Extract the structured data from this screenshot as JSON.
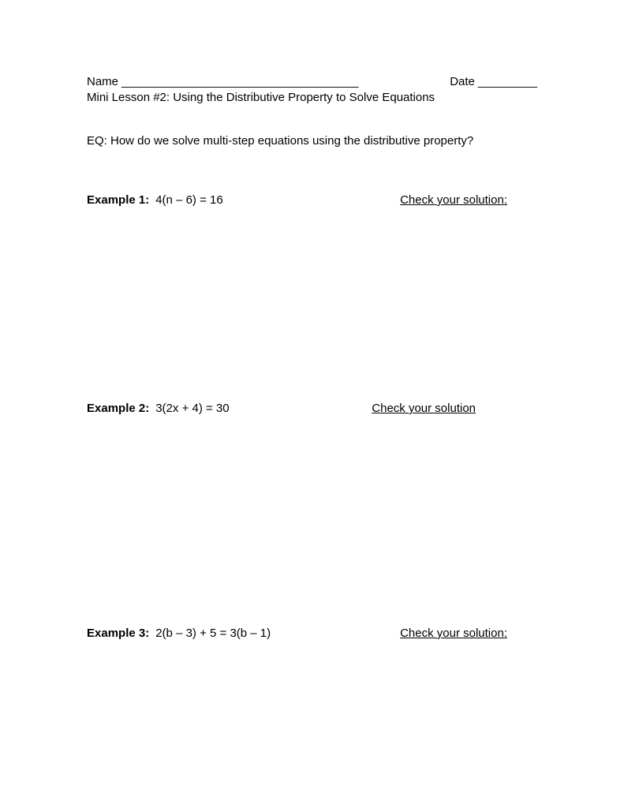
{
  "header": {
    "name_label": "Name",
    "name_line": "____________________________________",
    "date_label": "Date",
    "date_line": "_________"
  },
  "lesson_title": "Mini Lesson #2: Using the Distributive Property to Solve Equations",
  "eq": "EQ: How do we solve multi-step equations using the distributive property?",
  "examples": [
    {
      "label": "Example 1:",
      "equation": "4(n – 6) = 16",
      "check": "Check your solution:"
    },
    {
      "label": "Example 2:",
      "equation": "3(2x + 4) = 30",
      "check": " Check your solution"
    },
    {
      "label": "Example 3:",
      "equation": "2(b – 3) + 5 = 3(b – 1)",
      "check": "Check your solution:"
    }
  ]
}
